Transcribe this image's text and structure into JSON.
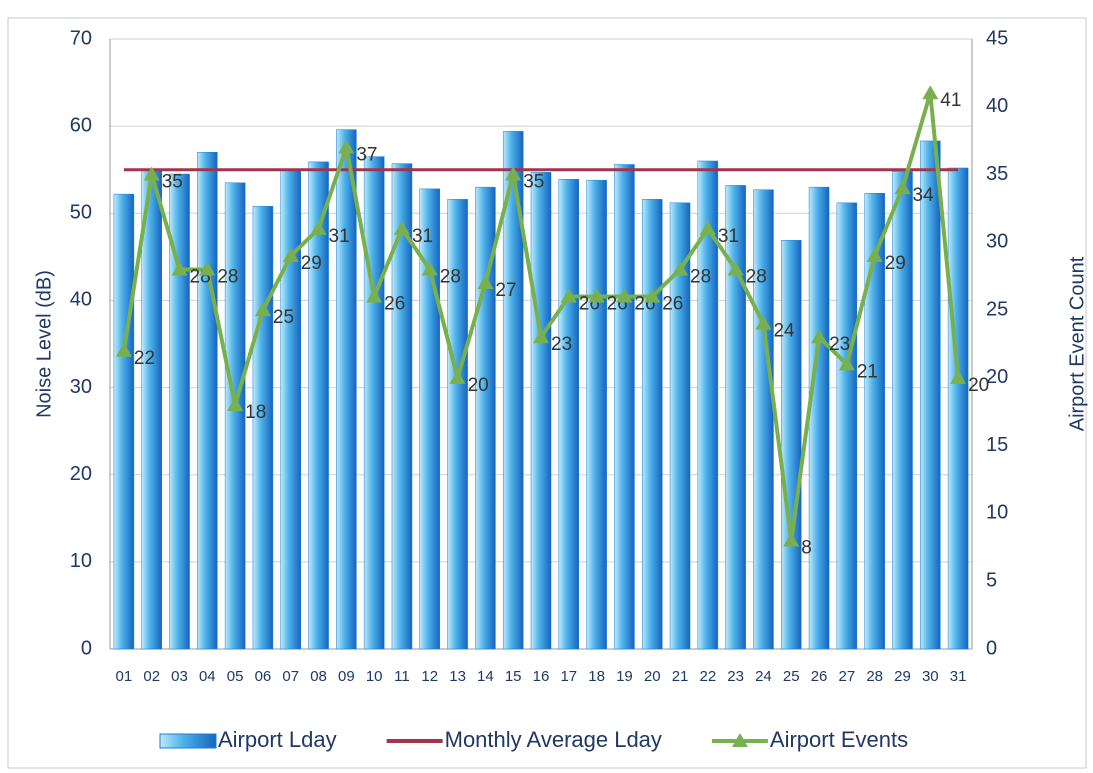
{
  "chart_data": {
    "type": "bar_line",
    "y_label": "Noise Level (dB)",
    "y2_label": "Airport Event Count",
    "categories": [
      "01",
      "02",
      "03",
      "04",
      "05",
      "06",
      "07",
      "08",
      "09",
      "10",
      "11",
      "12",
      "13",
      "14",
      "15",
      "16",
      "17",
      "18",
      "19",
      "20",
      "21",
      "22",
      "23",
      "24",
      "25",
      "26",
      "27",
      "28",
      "29",
      "30",
      "31"
    ],
    "series": [
      {
        "name": "Airport Lday",
        "kind": "bar",
        "color": "#1b7fd4",
        "values": [
          52.2,
          55,
          54.5,
          57,
          53.5,
          50.8,
          54.9,
          55.9,
          59.6,
          56.5,
          55.7,
          52.8,
          51.6,
          53,
          59.4,
          54.7,
          53.9,
          53.8,
          55.6,
          51.6,
          51.2,
          56,
          53.2,
          52.7,
          46.9,
          53,
          51.2,
          52.3,
          54.8,
          58.3,
          55.2
        ]
      },
      {
        "name": "Monthly Average Lday",
        "kind": "line",
        "color": "#a3344e",
        "values": [
          55,
          55,
          55,
          55,
          55,
          55,
          55,
          55,
          55,
          55,
          55,
          55,
          55,
          55,
          55,
          55,
          55,
          55,
          55,
          55,
          55,
          55,
          55,
          55,
          55,
          55,
          55,
          55,
          55,
          55,
          55
        ]
      },
      {
        "name": "Airport Events",
        "kind": "line",
        "axis": "y2",
        "color": "#79b04f",
        "labels": true,
        "values": [
          22,
          35,
          28,
          28,
          18,
          25,
          29,
          31,
          37,
          26,
          31,
          28,
          20,
          27,
          35,
          23,
          26,
          26,
          26,
          26,
          28,
          31,
          28,
          24,
          8,
          23,
          21,
          29,
          34,
          41,
          20
        ]
      }
    ],
    "ylim": [
      0,
      70
    ],
    "yticks": [
      0,
      10,
      20,
      30,
      40,
      50,
      60,
      70
    ],
    "y2lim": [
      0,
      45
    ],
    "y2ticks": [
      0,
      5,
      10,
      15,
      20,
      25,
      30,
      35,
      40,
      45
    ],
    "grid": true,
    "legend": "bottom"
  }
}
